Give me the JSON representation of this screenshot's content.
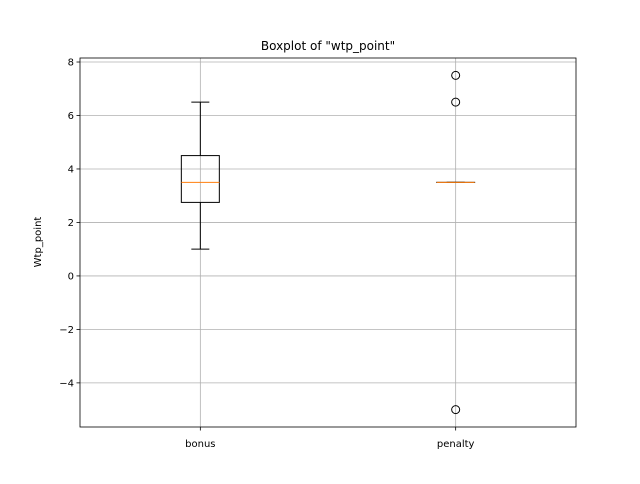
{
  "chart_data": {
    "type": "box",
    "title": "Boxplot of \"wtp_point\"",
    "xlabel": "",
    "ylabel": "Wtp_point",
    "ylim": [
      -5.65,
      8.15
    ],
    "yticks": [
      -4,
      -2,
      0,
      2,
      4,
      6,
      8
    ],
    "ytick_labels": [
      "−4",
      "−2",
      "0",
      "2",
      "4",
      "6",
      "8"
    ],
    "grid": true,
    "categories": [
      "bonus",
      "penalty"
    ],
    "boxes": [
      {
        "category": "bonus",
        "whisker_low": 1.0,
        "q1": 2.75,
        "median": 3.5,
        "q3": 4.5,
        "whisker_high": 6.5,
        "outliers": []
      },
      {
        "category": "penalty",
        "whisker_low": 3.5,
        "q1": 3.5,
        "median": 3.5,
        "q3": 3.5,
        "whisker_high": 3.5,
        "outliers": [
          7.5,
          6.5,
          -5.0
        ]
      }
    ],
    "colors": {
      "box": "#000000",
      "median": "#ff7f0e",
      "grid": "#b0b0b0"
    }
  }
}
